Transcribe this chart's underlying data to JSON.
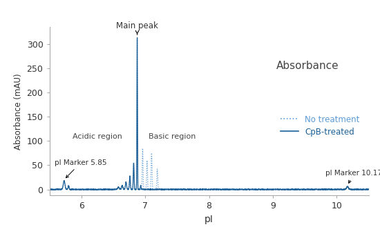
{
  "title": "Absorbance",
  "xlabel": "pI",
  "ylabel": "Absorbance (mAU)",
  "xlim": [
    5.5,
    10.5
  ],
  "ylim": [
    -12,
    335
  ],
  "yticks": [
    0,
    50,
    100,
    150,
    200,
    250,
    300
  ],
  "xticks": [
    6,
    7,
    8,
    9,
    10
  ],
  "line_color": "#1c5f96",
  "dotted_color": "#5b9bd5",
  "bg_color": "#ffffff",
  "legend_no_treatment": "No treatment",
  "legend_cpb": "CpB-treated",
  "figsize": [
    5.5,
    3.29
  ],
  "dpi": 100
}
